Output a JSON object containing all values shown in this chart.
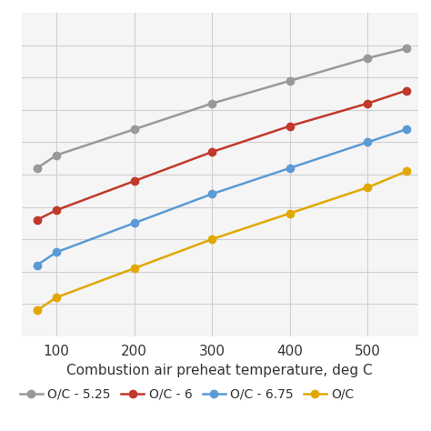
{
  "series": [
    {
      "label": "O/C - 5.25",
      "color": "#999999",
      "x": [
        75,
        100,
        200,
        300,
        400,
        500,
        550
      ],
      "y": [
        0.52,
        0.56,
        0.64,
        0.72,
        0.79,
        0.86,
        0.89
      ]
    },
    {
      "label": "O/C - 6",
      "color": "#C0392B",
      "x": [
        75,
        100,
        200,
        300,
        400,
        500,
        550
      ],
      "y": [
        0.36,
        0.39,
        0.48,
        0.57,
        0.65,
        0.72,
        0.76
      ]
    },
    {
      "label": "O/C - 6.75",
      "color": "#5B9BD5",
      "x": [
        75,
        100,
        200,
        300,
        400,
        500,
        550
      ],
      "y": [
        0.22,
        0.26,
        0.35,
        0.44,
        0.52,
        0.6,
        0.64
      ]
    },
    {
      "label": "O/C",
      "color": "#E0A800",
      "x": [
        75,
        100,
        200,
        300,
        400,
        500,
        550
      ],
      "y": [
        0.08,
        0.12,
        0.21,
        0.3,
        0.38,
        0.46,
        0.51
      ]
    }
  ],
  "xlabel": "Combustion air preheat temperature, deg C",
  "xlim": [
    55,
    565
  ],
  "ylim": [
    0.0,
    1.0
  ],
  "xticks": [
    100,
    200,
    300,
    400,
    500
  ],
  "yticks": [
    0.1,
    0.2,
    0.3,
    0.4,
    0.5,
    0.6,
    0.7,
    0.8,
    0.9
  ],
  "grid_color": "#D0D0D0",
  "background_color": "#FFFFFF",
  "plot_bg_color": "#F5F5F5",
  "marker": "o",
  "marker_size": 6,
  "linewidth": 1.8,
  "xlabel_fontsize": 11,
  "tick_fontsize": 11,
  "legend_fontsize": 10
}
